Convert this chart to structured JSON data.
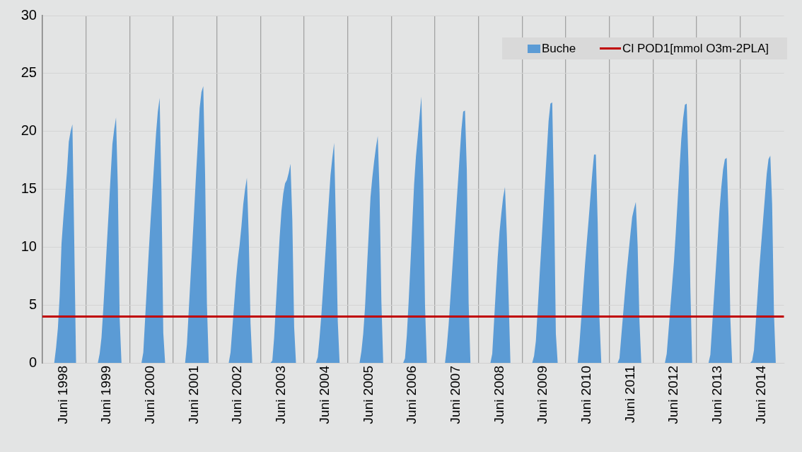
{
  "chart_data": {
    "type": "area",
    "categories": [
      null,
      null,
      null,
      null,
      null,
      null,
      null,
      null,
      null,
      null,
      null,
      "Juni 1998",
      null,
      null,
      null,
      null,
      null,
      null,
      null,
      null,
      null,
      null,
      null,
      null,
      null,
      null,
      null,
      null,
      null,
      null,
      null,
      null,
      null,
      null,
      null,
      "Juni 1999",
      null,
      null,
      null,
      null,
      null,
      null,
      null,
      null,
      null,
      null,
      null,
      null,
      null,
      null,
      null,
      null,
      null,
      null,
      null,
      null,
      null,
      null,
      null,
      "Juni 2000",
      null,
      null,
      null,
      null,
      null,
      null,
      null,
      null,
      null,
      null,
      null,
      null,
      null,
      null,
      null,
      null,
      null,
      null,
      null,
      null,
      null,
      null,
      null,
      "Juni 2001",
      null,
      null,
      null,
      null,
      null,
      null,
      null,
      null,
      null,
      null,
      null,
      null,
      null,
      null,
      null,
      null,
      null,
      null,
      null,
      null,
      null,
      null,
      null,
      "Juni 2002",
      null,
      null,
      null,
      null,
      null,
      null,
      null,
      null,
      null,
      null,
      null,
      null,
      null,
      null,
      null,
      null,
      null,
      null,
      null,
      null,
      null,
      null,
      null,
      "Juni 2003",
      null,
      null,
      null,
      null,
      null,
      null,
      null,
      null,
      null,
      null,
      null,
      null,
      null,
      null,
      null,
      null,
      null,
      null,
      null,
      null,
      null,
      null,
      null,
      "Juni 2004",
      null,
      null,
      null,
      null,
      null,
      null,
      null,
      null,
      null,
      null,
      null,
      null,
      null,
      null,
      null,
      null,
      null,
      null,
      null,
      null,
      null,
      null,
      null,
      "Juni 2005",
      null,
      null,
      null,
      null,
      null,
      null,
      null,
      null,
      null,
      null,
      null,
      null,
      null,
      null,
      null,
      null,
      null,
      null,
      null,
      null,
      null,
      null,
      null,
      "Juni 2006",
      null,
      null,
      null,
      null,
      null,
      null,
      null,
      null,
      null,
      null,
      null,
      null,
      null,
      null,
      null,
      null,
      null,
      null,
      null,
      null,
      null,
      null,
      null,
      "Juni 2007",
      null,
      null,
      null,
      null,
      null,
      null,
      null,
      null,
      null,
      null,
      null,
      null,
      null,
      null,
      null,
      null,
      null,
      null,
      null,
      null,
      null,
      null,
      null,
      "Juni 2008",
      null,
      null,
      null,
      null,
      null,
      null,
      null,
      null,
      null,
      null,
      null,
      null,
      null,
      null,
      null,
      null,
      null,
      null,
      null,
      null,
      null,
      null,
      null,
      "Juni 2009",
      null,
      null,
      null,
      null,
      null,
      null,
      null,
      null,
      null,
      null,
      null,
      null,
      null,
      null,
      null,
      null,
      null,
      null,
      null,
      null,
      null,
      null,
      null,
      "Juni 2010",
      null,
      null,
      null,
      null,
      null,
      null,
      null,
      null,
      null,
      null,
      null,
      null,
      null,
      null,
      null,
      null,
      null,
      null,
      null,
      null,
      null,
      null,
      null,
      "Juni 2011",
      null,
      null,
      null,
      null,
      null,
      null,
      null,
      null,
      null,
      null,
      null,
      null,
      null,
      null,
      null,
      null,
      null,
      null,
      null,
      null,
      null,
      null,
      null,
      "Juni 2012",
      null,
      null,
      null,
      null,
      null,
      null,
      null,
      null,
      null,
      null,
      null,
      null,
      null,
      null,
      null,
      null,
      null,
      null,
      null,
      null,
      null,
      null,
      null,
      "Juni 2013",
      null,
      null,
      null,
      null,
      null,
      null,
      null,
      null,
      null,
      null,
      null,
      null,
      null,
      null,
      null,
      null,
      null,
      null,
      null,
      null,
      null,
      null,
      null,
      "Juni 2014",
      null,
      null,
      null,
      null,
      null,
      null,
      null,
      null,
      null,
      null,
      null,
      null
    ],
    "series": [
      {
        "name": "Buche",
        "color": "#5b9bd5",
        "values": [
          0,
          0,
          0,
          0,
          0,
          0,
          0,
          1.3,
          3.0,
          5.8,
          10.3,
          12.5,
          14.5,
          16.5,
          19.1,
          20.0,
          20.6,
          10.6,
          0,
          0,
          0,
          0,
          0,
          0,
          0,
          0,
          0,
          0,
          0,
          0,
          0,
          0.8,
          2.2,
          4.7,
          7.5,
          10.4,
          13.2,
          16.1,
          18.9,
          20.2,
          21.2,
          15.1,
          3.8,
          0,
          0,
          0,
          0,
          0,
          0,
          0,
          0,
          0,
          0,
          0,
          0,
          0.9,
          3.8,
          6.7,
          9.6,
          12.3,
          14.8,
          17.3,
          19.8,
          21.7,
          22.9,
          14.8,
          2.6,
          0,
          0,
          0,
          0,
          0,
          0,
          0,
          0,
          0,
          0,
          0,
          0,
          1.6,
          4.5,
          7.4,
          10.3,
          13.2,
          16.2,
          19.0,
          22.0,
          23.4,
          23.9,
          16.3,
          5.1,
          0,
          0,
          0,
          0,
          0,
          0,
          0,
          0,
          0,
          0,
          0,
          0,
          0.9,
          3.0,
          5.1,
          7.2,
          8.9,
          10.2,
          11.8,
          13.7,
          15.0,
          16.0,
          11.0,
          3.4,
          0,
          0,
          0,
          0,
          0,
          0,
          0,
          0,
          0,
          0,
          0,
          0.2,
          2.2,
          5.1,
          8.0,
          10.8,
          13.1,
          14.6,
          15.5,
          15.8,
          16.4,
          17.2,
          12.3,
          3.1,
          0,
          0,
          0,
          0,
          0,
          0,
          0,
          0,
          0,
          0,
          0,
          0,
          0.5,
          2.2,
          4.2,
          6.6,
          9.0,
          11.4,
          13.8,
          16.2,
          17.7,
          19.0,
          11.7,
          3.6,
          0,
          0,
          0,
          0,
          0,
          0,
          0,
          0,
          0,
          0,
          0,
          0,
          1.0,
          2.5,
          4.8,
          8.0,
          11.1,
          14.3,
          16.0,
          17.4,
          18.6,
          19.6,
          14.7,
          5.3,
          0,
          0,
          0,
          0,
          0,
          0,
          0,
          0,
          0,
          0,
          0,
          0,
          0.4,
          2.4,
          5.3,
          8.6,
          12.0,
          15.4,
          17.8,
          19.5,
          21.3,
          23.0,
          15.9,
          5.0,
          0,
          0,
          0,
          0,
          0,
          0,
          0,
          0,
          0,
          0,
          0,
          1.4,
          3.3,
          5.7,
          8.1,
          10.5,
          12.9,
          15.3,
          17.7,
          20.1,
          21.7,
          21.8,
          16.7,
          5.2,
          0,
          0,
          0,
          0,
          0,
          0,
          0,
          0,
          0,
          0,
          0,
          0,
          0.8,
          3.6,
          6.4,
          9.1,
          11.3,
          12.9,
          14.3,
          15.2,
          11.1,
          5.6,
          0,
          0,
          0,
          0,
          0,
          0,
          0,
          0,
          0,
          0,
          0,
          0,
          0,
          0.6,
          1.9,
          4.6,
          7.4,
          10.1,
          12.8,
          15.5,
          18.2,
          20.9,
          22.4,
          22.5,
          14.3,
          2.5,
          0,
          0,
          0,
          0,
          0,
          0,
          0,
          0,
          0,
          0,
          0,
          0,
          1.7,
          3.9,
          6.2,
          8.4,
          10.4,
          12.3,
          14.3,
          16.3,
          18.0,
          18.0,
          12.2,
          3.8,
          0,
          0,
          0,
          0,
          0,
          0,
          0,
          0,
          0,
          0,
          0.4,
          2.3,
          4.2,
          6.1,
          7.9,
          9.5,
          11.1,
          12.6,
          13.3,
          13.9,
          10.1,
          3.6,
          0,
          0,
          0,
          0,
          0,
          0,
          0,
          0,
          0,
          0,
          0,
          0,
          0,
          0,
          0.8,
          2.8,
          4.8,
          6.8,
          8.8,
          11.3,
          14.0,
          16.7,
          19.3,
          21.1,
          22.3,
          22.4,
          16.9,
          6.5,
          0,
          0,
          0,
          0,
          0,
          0,
          0,
          0,
          0,
          0,
          0.7,
          3.2,
          5.7,
          8.1,
          10.6,
          13.1,
          15.1,
          16.7,
          17.6,
          17.7,
          12.7,
          3.9,
          0,
          0,
          0,
          0,
          0,
          0,
          0,
          0,
          0,
          0,
          0,
          0.2,
          1.1,
          3.5,
          5.9,
          8.3,
          10.3,
          12.3,
          14.3,
          16.3,
          17.6,
          17.9,
          13.7,
          4.3,
          0,
          0,
          0,
          0,
          0
        ]
      }
    ],
    "ref_lines": [
      {
        "axis": "y",
        "value": 4,
        "label": "Cl POD1[mmol O3m-2PLA]",
        "color": "#c00000"
      }
    ],
    "ylim": [
      0,
      30
    ],
    "yticks": [
      0,
      5,
      10,
      15,
      20,
      25,
      30
    ],
    "grid": true,
    "legend": "top right"
  }
}
